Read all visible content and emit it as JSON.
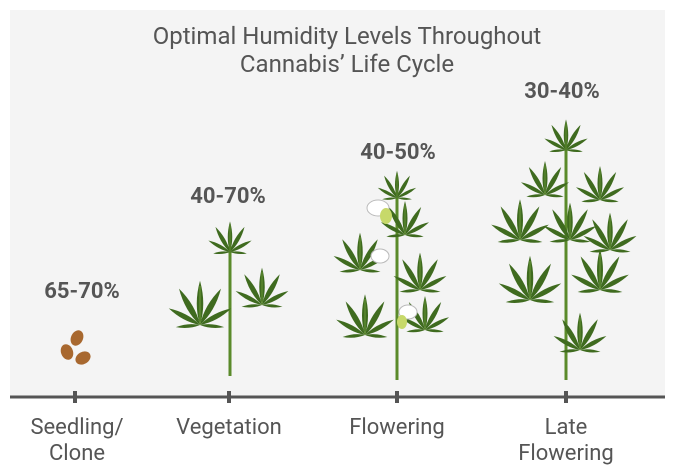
{
  "title": [
    "Optimal Humidity Levels Throughout",
    "Cannabis’ Life Cycle"
  ],
  "stages": [
    {
      "label": [
        "Seedling/",
        "Clone"
      ],
      "range": "65-70%"
    },
    {
      "label": [
        "Vegetation"
      ],
      "range": "40-70%"
    },
    {
      "label": [
        "Flowering"
      ],
      "range": "40-50%"
    },
    {
      "label": [
        "Late",
        "Flowering"
      ],
      "range": "30-40%"
    }
  ]
}
